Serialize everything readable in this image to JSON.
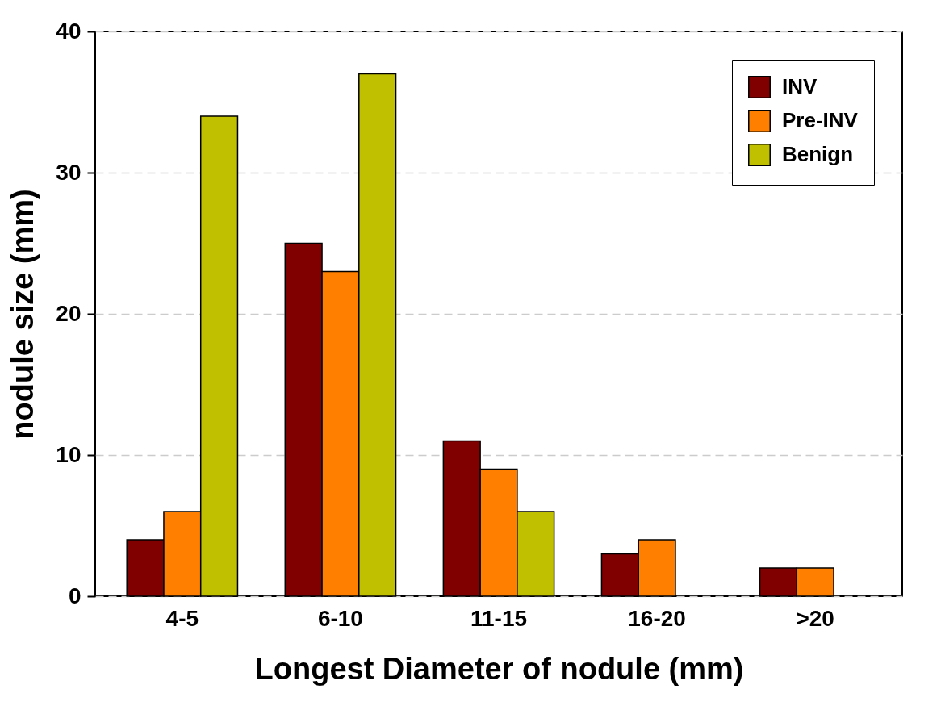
{
  "chart_data": {
    "type": "bar",
    "xlabel": "Longest Diameter of nodule (mm)",
    "ylabel": "nodule size (mm)",
    "categories": [
      "4-5",
      "6-10",
      "11-15",
      "16-20",
      ">20"
    ],
    "series": [
      {
        "name": "INV",
        "color": "#800000",
        "values": [
          4,
          25,
          11,
          3,
          2
        ]
      },
      {
        "name": "Pre-INV",
        "color": "#ff8000",
        "values": [
          6,
          23,
          9,
          4,
          2
        ]
      },
      {
        "name": "Benign",
        "color": "#c0c000",
        "values": [
          34,
          37,
          6,
          null,
          null
        ]
      }
    ],
    "ylim": [
      0,
      40
    ],
    "yticks": [
      0,
      10,
      20,
      30,
      40
    ],
    "grid": "y",
    "legend": "top right"
  }
}
